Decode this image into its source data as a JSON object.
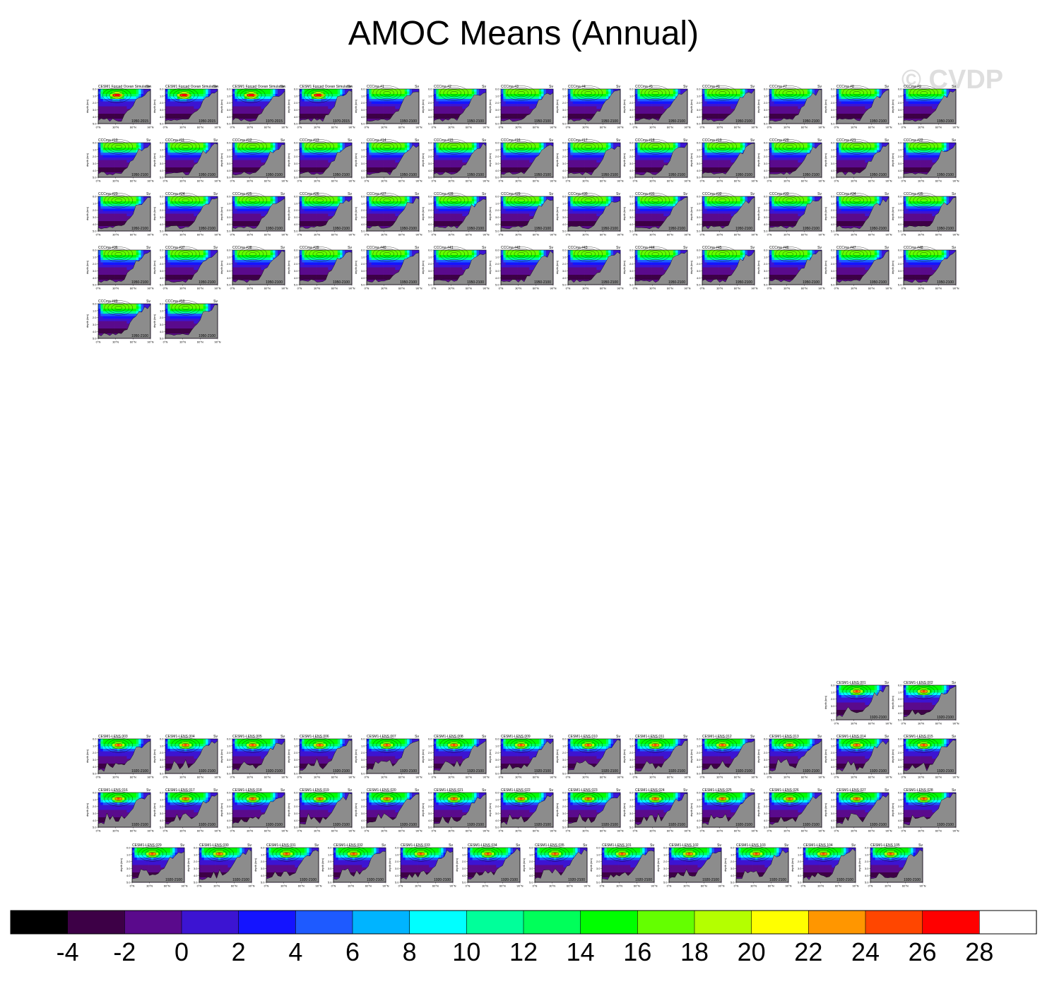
{
  "title": "AMOC Means (Annual)",
  "watermark": "© CVDP",
  "units": "Sv",
  "panel_axes": {
    "ylabel": "depth (km)",
    "yticks": [
      "0.0",
      "1.0",
      "2.0",
      "3.0",
      "4.0",
      "5.0"
    ],
    "xticks": [
      "0°N",
      "30°N",
      "60°N",
      "90°N"
    ]
  },
  "panel_groups": [
    {
      "group": "top",
      "panels": [
        {
          "name": "CESM1 Forced Ocean Simulation",
          "period": "1950-2015",
          "style": "forced"
        },
        {
          "name": "CESM1 Forced Ocean Simulation",
          "period": "1950-2015",
          "style": "forced"
        },
        {
          "name": "CESM1 Forced Ocean Simulation",
          "period": "1970-2015",
          "style": "forced"
        },
        {
          "name": "CESM1 Forced Ocean Simulation",
          "period": "1970-2015",
          "style": "forced"
        },
        {
          "name": "CCCma #1",
          "period": "1950-2100",
          "style": "cccma"
        },
        {
          "name": "CCCma #2",
          "period": "1950-2100",
          "style": "cccma"
        },
        {
          "name": "CCCma #3",
          "period": "1950-2100",
          "style": "cccma"
        },
        {
          "name": "CCCma #4",
          "period": "1950-2100",
          "style": "cccma"
        },
        {
          "name": "CCCma #5",
          "period": "1950-2100",
          "style": "cccma"
        },
        {
          "name": "CCCma #6",
          "period": "1950-2100",
          "style": "cccma"
        },
        {
          "name": "CCCma #7",
          "period": "1950-2100",
          "style": "cccma"
        },
        {
          "name": "CCCma #8",
          "period": "1950-2100",
          "style": "cccma"
        },
        {
          "name": "CCCma #9",
          "period": "1950-2100",
          "style": "cccma"
        },
        {
          "name": "CCCma #10",
          "period": "1950-2100",
          "style": "cccma"
        },
        {
          "name": "CCCma #11",
          "period": "1950-2100",
          "style": "cccma"
        },
        {
          "name": "CCCma #12",
          "period": "1950-2100",
          "style": "cccma"
        },
        {
          "name": "CCCma #13",
          "period": "1950-2100",
          "style": "cccma"
        },
        {
          "name": "CCCma #14",
          "period": "1950-2100",
          "style": "cccma"
        },
        {
          "name": "CCCma #15",
          "period": "1950-2100",
          "style": "cccma"
        },
        {
          "name": "CCCma #16",
          "period": "1950-2100",
          "style": "cccma"
        },
        {
          "name": "CCCma #17",
          "period": "1950-2100",
          "style": "cccma"
        },
        {
          "name": "CCCma #18",
          "period": "1950-2100",
          "style": "cccma"
        },
        {
          "name": "CCCma #19",
          "period": "1950-2100",
          "style": "cccma"
        },
        {
          "name": "CCCma #20",
          "period": "1950-2100",
          "style": "cccma"
        },
        {
          "name": "CCCma #21",
          "period": "1950-2100",
          "style": "cccma"
        },
        {
          "name": "CCCma #22",
          "period": "1950-2100",
          "style": "cccma"
        },
        {
          "name": "CCCma #23",
          "period": "1950-2100",
          "style": "cccma"
        },
        {
          "name": "CCCma #24",
          "period": "1950-2100",
          "style": "cccma"
        },
        {
          "name": "CCCma #25",
          "period": "1950-2100",
          "style": "cccma"
        },
        {
          "name": "CCCma #26",
          "period": "1950-2100",
          "style": "cccma"
        },
        {
          "name": "CCCma #27",
          "period": "1950-2100",
          "style": "cccma"
        },
        {
          "name": "CCCma #28",
          "period": "1950-2100",
          "style": "cccma"
        },
        {
          "name": "CCCma #29",
          "period": "1950-2100",
          "style": "cccma"
        },
        {
          "name": "CCCma #30",
          "period": "1950-2100",
          "style": "cccma"
        },
        {
          "name": "CCCma #31",
          "period": "1950-2100",
          "style": "cccma"
        },
        {
          "name": "CCCma #32",
          "period": "1950-2100",
          "style": "cccma"
        },
        {
          "name": "CCCma #33",
          "period": "1950-2100",
          "style": "cccma"
        },
        {
          "name": "CCCma #34",
          "period": "1950-2100",
          "style": "cccma"
        },
        {
          "name": "CCCma #35",
          "period": "1950-2100",
          "style": "cccma"
        },
        {
          "name": "CCCma #36",
          "period": "1950-2100",
          "style": "cccma"
        },
        {
          "name": "CCCma #37",
          "period": "1950-2100",
          "style": "cccma"
        },
        {
          "name": "CCCma #38",
          "period": "1950-2100",
          "style": "cccma"
        },
        {
          "name": "CCCma #39",
          "period": "1950-2100",
          "style": "cccma"
        },
        {
          "name": "CCCma #40",
          "period": "1950-2100",
          "style": "cccma"
        },
        {
          "name": "CCCma #41",
          "period": "1950-2100",
          "style": "cccma"
        },
        {
          "name": "CCCma #42",
          "period": "1950-2100",
          "style": "cccma"
        },
        {
          "name": "CCCma #43",
          "period": "1950-2100",
          "style": "cccma"
        },
        {
          "name": "CCCma #44",
          "period": "1950-2100",
          "style": "cccma"
        },
        {
          "name": "CCCma #45",
          "period": "1950-2100",
          "style": "cccma"
        },
        {
          "name": "CCCma #46",
          "period": "1950-2100",
          "style": "cccma"
        },
        {
          "name": "CCCma #47",
          "period": "1950-2100",
          "style": "cccma"
        },
        {
          "name": "CCCma #48",
          "period": "1950-2100",
          "style": "cccma"
        },
        {
          "name": "CCCma #49",
          "period": "1950-2100",
          "style": "cccma"
        },
        {
          "name": "CCCma #50",
          "period": "1950-2100",
          "style": "cccma"
        }
      ]
    },
    {
      "group": "bottom-right",
      "panels": [
        {
          "name": "CESM1-LENS 001",
          "period": "1920-2100",
          "style": "lens"
        },
        {
          "name": "CESM1-LENS 002",
          "period": "1920-2100",
          "style": "lens"
        }
      ]
    },
    {
      "group": "bottom",
      "panels": [
        {
          "name": "CESM1-LENS 003",
          "period": "1920-2100",
          "style": "lens"
        },
        {
          "name": "CESM1-LENS 004",
          "period": "1920-2100",
          "style": "lens"
        },
        {
          "name": "CESM1-LENS 005",
          "period": "1920-2100",
          "style": "lens"
        },
        {
          "name": "CESM1-LENS 006",
          "period": "1920-2100",
          "style": "lens"
        },
        {
          "name": "CESM1-LENS 007",
          "period": "1920-2100",
          "style": "lens"
        },
        {
          "name": "CESM1-LENS 008",
          "period": "1920-2100",
          "style": "lens"
        },
        {
          "name": "CESM1-LENS 009",
          "period": "1920-2100",
          "style": "lens"
        },
        {
          "name": "CESM1-LENS 010",
          "period": "1920-2100",
          "style": "lens"
        },
        {
          "name": "CESM1-LENS 011",
          "period": "1920-2100",
          "style": "lens"
        },
        {
          "name": "CESM1-LENS 012",
          "period": "1920-2100",
          "style": "lens"
        },
        {
          "name": "CESM1-LENS 013",
          "period": "1920-2100",
          "style": "lens"
        },
        {
          "name": "CESM1-LENS 014",
          "period": "1920-2100",
          "style": "lens"
        },
        {
          "name": "CESM1-LENS 015",
          "period": "1920-2100",
          "style": "lens"
        },
        {
          "name": "CESM1-LENS 016",
          "period": "1920-2100",
          "style": "lens"
        },
        {
          "name": "CESM1-LENS 017",
          "period": "1920-2100",
          "style": "lens"
        },
        {
          "name": "CESM1-LENS 018",
          "period": "1920-2100",
          "style": "lens"
        },
        {
          "name": "CESM1-LENS 019",
          "period": "1920-2100",
          "style": "lens"
        },
        {
          "name": "CESM1-LENS 020",
          "period": "1920-2100",
          "style": "lens"
        },
        {
          "name": "CESM1-LENS 021",
          "period": "1920-2100",
          "style": "lens"
        },
        {
          "name": "CESM1-LENS 022",
          "period": "1920-2100",
          "style": "lens"
        },
        {
          "name": "CESM1-LENS 023",
          "period": "1920-2100",
          "style": "lens"
        },
        {
          "name": "CESM1-LENS 024",
          "period": "1920-2100",
          "style": "lens"
        },
        {
          "name": "CESM1-LENS 025",
          "period": "1920-2100",
          "style": "lens"
        },
        {
          "name": "CESM1-LENS 026",
          "period": "1920-2100",
          "style": "lens"
        },
        {
          "name": "CESM1-LENS 027",
          "period": "1920-2100",
          "style": "lens"
        },
        {
          "name": "CESM1-LENS 028",
          "period": "1920-2100",
          "style": "lens"
        }
      ]
    },
    {
      "group": "bottom-last",
      "panels": [
        {
          "name": "CESM1-LENS 029",
          "period": "1920-2100",
          "style": "lens"
        },
        {
          "name": "CESM1-LENS 030",
          "period": "1920-2100",
          "style": "lens"
        },
        {
          "name": "CESM1-LENS 031",
          "period": "1920-2100",
          "style": "lens"
        },
        {
          "name": "CESM1-LENS 032",
          "period": "1920-2100",
          "style": "lens"
        },
        {
          "name": "CESM1-LENS 033",
          "period": "1920-2100",
          "style": "lens"
        },
        {
          "name": "CESM1-LENS 034",
          "period": "1920-2100",
          "style": "lens"
        },
        {
          "name": "CESM1-LENS 035",
          "period": "1920-2100",
          "style": "lens"
        },
        {
          "name": "CESM1-LENS 101",
          "period": "1920-2100",
          "style": "lens"
        },
        {
          "name": "CESM1-LENS 102",
          "period": "1920-2100",
          "style": "lens"
        },
        {
          "name": "CESM1-LENS 103",
          "period": "1920-2100",
          "style": "lens"
        },
        {
          "name": "CESM1-LENS 104",
          "period": "1920-2100",
          "style": "lens"
        },
        {
          "name": "CESM1-LENS 105",
          "period": "1920-2100",
          "style": "lens"
        }
      ]
    }
  ],
  "chart_data": {
    "type": "heatmap",
    "title": "AMOC Means (Annual)",
    "units": "Sv",
    "xlabel": "",
    "ylabel": "depth (km)",
    "xlim": [
      0,
      90
    ],
    "ylim": [
      0.0,
      5.0
    ],
    "colorbar": {
      "levels": [
        -4,
        -2,
        0,
        2,
        4,
        6,
        8,
        10,
        12,
        14,
        16,
        18,
        20,
        22,
        24,
        26,
        28
      ],
      "tick_labels": [
        "-4",
        "-2",
        "0",
        "2",
        "4",
        "6",
        "8",
        "10",
        "12",
        "14",
        "16",
        "18",
        "20",
        "22",
        "24",
        "26",
        "28"
      ],
      "colors": [
        "#000000",
        "#3d0046",
        "#5a0a8c",
        "#3c14d2",
        "#1414ff",
        "#1e5aff",
        "#00b4ff",
        "#00ffff",
        "#00ff9a",
        "#00ff5a",
        "#00ff00",
        "#64ff00",
        "#b4ff00",
        "#ffff00",
        "#ff9600",
        "#ff4600",
        "#ff0000",
        "#ffffff"
      ]
    },
    "styles": {
      "forced": {
        "max_sv": 28,
        "core_depth_km": 0.9,
        "core_lat": 32,
        "surface_band": 16
      },
      "cccma": {
        "max_sv": 18,
        "core_depth_km": 0.6,
        "core_lat": 35,
        "surface_band": 18
      },
      "lens": {
        "max_sv": 25,
        "core_depth_km": 0.9,
        "core_lat": 35,
        "surface_band": 16
      }
    }
  }
}
